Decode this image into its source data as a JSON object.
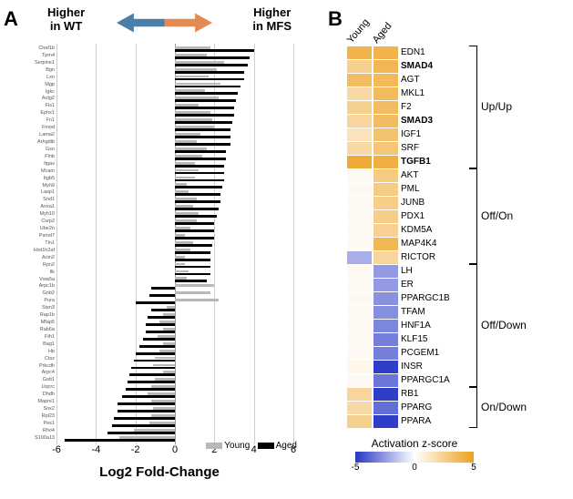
{
  "panelA": {
    "labels": {
      "panel": "A",
      "arrow_left": "Higher<br>in WT",
      "arrow_right": "Higher<br>in MFS",
      "xaxis": "Log2 Fold-Change"
    },
    "arrow": {
      "left_color": "#4a7fa8",
      "right_color": "#e38a54"
    },
    "legend": {
      "young": {
        "label": "Young",
        "color": "#b8b8b8"
      },
      "aged": {
        "label": "Aged",
        "color": "#000000"
      }
    },
    "xaxis": {
      "min": -6,
      "max": 6,
      "ticks": [
        -6,
        -4,
        -2,
        0,
        2,
        4,
        6
      ],
      "gridline_color": "#cfcfcf",
      "gridline_major_color": "#999"
    },
    "genes": [
      {
        "name": "Chaf1b",
        "young": 1.8,
        "aged": 4.0
      },
      {
        "name": "Tpm4",
        "young": 1.6,
        "aged": 3.8
      },
      {
        "name": "Serpine1",
        "young": 2.5,
        "aged": 3.7
      },
      {
        "name": "Bgn",
        "young": 2.1,
        "aged": 3.5
      },
      {
        "name": "Lxn",
        "young": 1.7,
        "aged": 3.5
      },
      {
        "name": "Mgp",
        "young": 2.3,
        "aged": 3.3
      },
      {
        "name": "Igkc",
        "young": 1.5,
        "aged": 3.2
      },
      {
        "name": "Actg2",
        "young": 2.2,
        "aged": 3.1
      },
      {
        "name": "Fis1",
        "young": 1.2,
        "aged": 3.0
      },
      {
        "name": "Ephx1",
        "young": 1.8,
        "aged": 3.0
      },
      {
        "name": "Fn1",
        "young": 1.9,
        "aged": 2.9
      },
      {
        "name": "Fmod",
        "young": 2.0,
        "aged": 2.8
      },
      {
        "name": "Lama2",
        "young": 1.3,
        "aged": 2.8
      },
      {
        "name": "Arhgdib",
        "young": 1.1,
        "aged": 2.8
      },
      {
        "name": "Gsn",
        "young": 1.6,
        "aged": 2.6
      },
      {
        "name": "Flnb",
        "young": 1.4,
        "aged": 2.6
      },
      {
        "name": "Itgav",
        "young": 1.0,
        "aged": 2.5
      },
      {
        "name": "Mcam",
        "young": 1.2,
        "aged": 2.5
      },
      {
        "name": "Itgb5",
        "young": 1.0,
        "aged": 2.5
      },
      {
        "name": "Myh9",
        "young": 0.6,
        "aged": 2.4
      },
      {
        "name": "Lasp1",
        "young": 0.7,
        "aged": 2.3
      },
      {
        "name": "Snd1",
        "young": 1.1,
        "aged": 2.3
      },
      {
        "name": "Anxa1",
        "young": 0.9,
        "aged": 2.2
      },
      {
        "name": "Myh10",
        "young": 1.2,
        "aged": 2.1
      },
      {
        "name": "Csrp2",
        "young": 1.1,
        "aged": 2.0
      },
      {
        "name": "Ube2n",
        "young": 0.8,
        "aged": 2.0
      },
      {
        "name": "Psmd7",
        "young": 0.5,
        "aged": 2.0
      },
      {
        "name": "Tln1",
        "young": 0.9,
        "aged": 1.9
      },
      {
        "name": "Hist1h2af",
        "young": 0.8,
        "aged": 1.8
      },
      {
        "name": "Actn2",
        "young": 0.5,
        "aged": 1.8
      },
      {
        "name": "Rpn2",
        "young": 0.5,
        "aged": 1.8
      },
      {
        "name": "Ilk",
        "young": 0.7,
        "aged": 1.8
      },
      {
        "name": "Vwa5a",
        "young": 0.6,
        "aged": 1.6
      },
      {
        "name": "Arpc1b",
        "young": 2.0,
        "aged": -1.2
      },
      {
        "name": "Gnb2",
        "young": 1.8,
        "aged": -1.3
      },
      {
        "name": "Pura",
        "young": 2.2,
        "aged": -2.0
      },
      {
        "name": "Stxn3",
        "young": -0.4,
        "aged": -1.2
      },
      {
        "name": "Rap1b",
        "young": -0.6,
        "aged": -1.4
      },
      {
        "name": "Mfap5",
        "young": -0.8,
        "aged": -1.5
      },
      {
        "name": "Rab6a",
        "young": -0.6,
        "aged": -1.5
      },
      {
        "name": "Fth1",
        "young": -0.9,
        "aged": -1.6
      },
      {
        "name": "Bag1",
        "young": -0.6,
        "aged": -1.8
      },
      {
        "name": "Hp",
        "young": -0.8,
        "aged": -2.0
      },
      {
        "name": "Ctsz",
        "young": -1.0,
        "aged": -2.1
      },
      {
        "name": "Prkcdh",
        "young": -1.1,
        "aged": -2.2
      },
      {
        "name": "Arpc4",
        "young": -0.6,
        "aged": -2.3
      },
      {
        "name": "Gstt1",
        "young": -1.0,
        "aged": -2.4
      },
      {
        "name": "Uqcrc",
        "young": -1.2,
        "aged": -2.5
      },
      {
        "name": "Dhdh",
        "young": -1.4,
        "aged": -2.7
      },
      {
        "name": "Mapre1",
        "young": -1.2,
        "aged": -2.9
      },
      {
        "name": "Snx2",
        "young": -1.1,
        "aged": -2.9
      },
      {
        "name": "Rpl23",
        "young": -1.2,
        "aged": -3.1
      },
      {
        "name": "Pes1",
        "young": -1.3,
        "aged": -3.2
      },
      {
        "name": "Rho4",
        "young": -2.1,
        "aged": -3.4
      },
      {
        "name": "S100a13",
        "young": -2.8,
        "aged": -5.6
      }
    ]
  },
  "panelB": {
    "labels": {
      "panel": "B"
    },
    "columns": [
      "Young",
      "Aged"
    ],
    "rows": [
      {
        "name": "EDN1",
        "bold": false,
        "young": 4.0,
        "aged": 4.0
      },
      {
        "name": "SMAD4",
        "bold": true,
        "young": 2.5,
        "aged": 3.8
      },
      {
        "name": "AGT",
        "bold": false,
        "young": 3.5,
        "aged": 3.7
      },
      {
        "name": "MKL1",
        "bold": false,
        "young": 2.0,
        "aged": 3.6
      },
      {
        "name": "F2",
        "bold": false,
        "young": 2.5,
        "aged": 3.5
      },
      {
        "name": "SMAD3",
        "bold": true,
        "young": 2.2,
        "aged": 3.5
      },
      {
        "name": "IGF1",
        "bold": false,
        "young": 1.5,
        "aged": 3.2
      },
      {
        "name": "SRF",
        "bold": false,
        "young": 2.0,
        "aged": 3.0
      },
      {
        "name": "TGFB1",
        "bold": true,
        "young": 4.5,
        "aged": 4.2
      },
      {
        "name": "AKT",
        "bold": false,
        "young": 0.3,
        "aged": 2.8
      },
      {
        "name": "PML",
        "bold": false,
        "young": 0.3,
        "aged": 2.7
      },
      {
        "name": "JUNB",
        "bold": false,
        "young": 0.3,
        "aged": 2.6
      },
      {
        "name": "PDX1",
        "bold": false,
        "young": 0.3,
        "aged": 2.6
      },
      {
        "name": "KDM5A",
        "bold": false,
        "young": 0.3,
        "aged": 2.4
      },
      {
        "name": "MAP4K4",
        "bold": false,
        "young": 0.3,
        "aged": 3.8
      },
      {
        "name": "RICTOR",
        "bold": false,
        "young": -2.0,
        "aged": 2.2
      },
      {
        "name": "LH",
        "bold": false,
        "young": 0.3,
        "aged": -2.5
      },
      {
        "name": "ER",
        "bold": false,
        "young": 0.3,
        "aged": -2.5
      },
      {
        "name": "PPARGC1B",
        "bold": false,
        "young": 0.3,
        "aged": -2.7
      },
      {
        "name": "TFAM",
        "bold": false,
        "young": 0.3,
        "aged": -2.8
      },
      {
        "name": "HNF1A",
        "bold": false,
        "young": 0.3,
        "aged": -3.0
      },
      {
        "name": "KLF15",
        "bold": false,
        "young": 0.3,
        "aged": -3.2
      },
      {
        "name": "PCGEM1",
        "bold": false,
        "young": 0.3,
        "aged": -3.2
      },
      {
        "name": "INSR",
        "bold": false,
        "young": 0.5,
        "aged": -4.8
      },
      {
        "name": "PPARGC1A",
        "bold": false,
        "young": 0.3,
        "aged": -3.4
      },
      {
        "name": "RB1",
        "bold": false,
        "young": 2.2,
        "aged": -4.8
      },
      {
        "name": "PPARG",
        "bold": false,
        "young": 2.0,
        "aged": -3.6
      },
      {
        "name": "PPARA",
        "bold": false,
        "young": 2.5,
        "aged": -4.8
      }
    ],
    "groups": [
      {
        "label": "Up/Up",
        "start": 0,
        "end": 9
      },
      {
        "label": "Off/On",
        "start": 9,
        "end": 16
      },
      {
        "label": "Off/Down",
        "start": 16,
        "end": 25
      },
      {
        "label": "On/Down",
        "start": 25,
        "end": 28
      }
    ],
    "colorbar": {
      "title": "Activation z-score",
      "min": -5,
      "max": 5,
      "mid": 0,
      "ticks": [
        -5,
        0,
        5
      ],
      "low_color": "#2735c6",
      "mid_color": "#ffffff",
      "high_color": "#eda01e"
    }
  }
}
